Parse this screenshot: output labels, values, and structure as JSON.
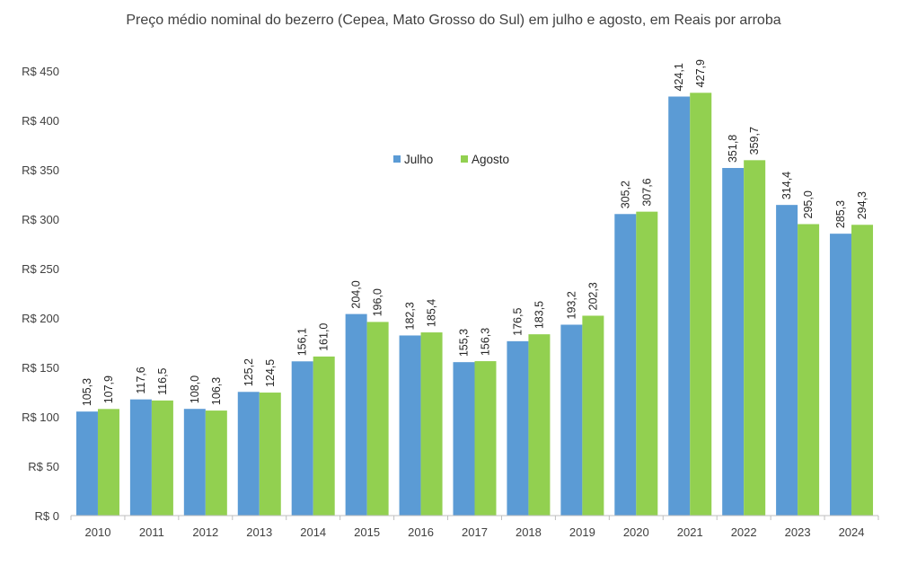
{
  "chart_data": {
    "type": "bar",
    "title": "Preço médio nominal do bezerro (Cepea, Mato Grosso do Sul) em julho e agosto, em Reais por arroba",
    "xlabel": "",
    "ylabel": "",
    "categories": [
      "2010",
      "2011",
      "2012",
      "2013",
      "2014",
      "2015",
      "2016",
      "2017",
      "2018",
      "2019",
      "2020",
      "2021",
      "2022",
      "2023",
      "2024"
    ],
    "series": [
      {
        "name": "Julho",
        "color": "#5B9BD5",
        "values": [
          105.3,
          117.6,
          108.0,
          125.2,
          156.1,
          204.0,
          182.3,
          155.3,
          176.5,
          193.2,
          305.2,
          424.1,
          351.8,
          314.4,
          285.3
        ],
        "labels": [
          "105,3",
          "117,6",
          "108,0",
          "125,2",
          "156,1",
          "204,0",
          "182,3",
          "155,3",
          "176,5",
          "193,2",
          "305,2",
          "424,1",
          "351,8",
          "314,4",
          "285,3"
        ]
      },
      {
        "name": "Agosto",
        "color": "#92D050",
        "values": [
          107.9,
          116.5,
          106.3,
          124.5,
          161.0,
          196.0,
          185.4,
          156.3,
          183.5,
          202.3,
          307.6,
          427.9,
          359.7,
          295.0,
          294.3
        ],
        "labels": [
          "107,9",
          "116,5",
          "106,3",
          "124,5",
          "161,0",
          "196,0",
          "185,4",
          "156,3",
          "183,5",
          "202,3",
          "307,6",
          "427,9",
          "359,7",
          "295,0",
          "294,3"
        ]
      }
    ],
    "ylim": [
      0,
      450
    ],
    "yticks": [
      0,
      50,
      100,
      150,
      200,
      250,
      300,
      350,
      400,
      450
    ],
    "ytick_labels": [
      "R$ 0",
      "R$ 50",
      "R$ 100",
      "R$ 150",
      "R$ 200",
      "R$ 250",
      "R$ 300",
      "R$ 350",
      "R$ 400",
      "R$ 450"
    ],
    "grid": false,
    "legend_position": "top-center"
  }
}
